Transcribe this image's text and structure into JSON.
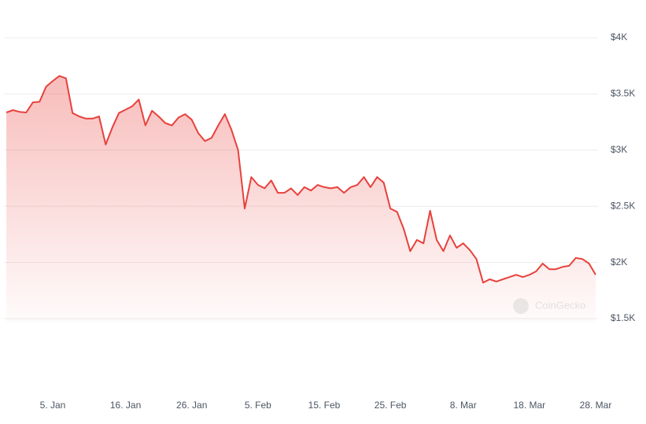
{
  "chart_data": {
    "type": "line",
    "watermark": "CoinGecko",
    "categories": [
      "29. Dec",
      "30. Dec",
      "31. Dec",
      "1. Jan",
      "2. Jan",
      "3. Jan",
      "4. Jan",
      "5. Jan",
      "6. Jan",
      "7. Jan",
      "8. Jan",
      "9. Jan",
      "10. Jan",
      "11. Jan",
      "12. Jan",
      "13. Jan",
      "14. Jan",
      "15. Jan",
      "16. Jan",
      "17. Jan",
      "18. Jan",
      "19. Jan",
      "20. Jan",
      "21. Jan",
      "22. Jan",
      "23. Jan",
      "24. Jan",
      "25. Jan",
      "26. Jan",
      "27. Jan",
      "28. Jan",
      "29. Jan",
      "30. Jan",
      "31. Jan",
      "1. Feb",
      "2. Feb",
      "3. Feb",
      "4. Feb",
      "5. Feb",
      "6. Feb",
      "7. Feb",
      "8. Feb",
      "9. Feb",
      "10. Feb",
      "11. Feb",
      "12. Feb",
      "13. Feb",
      "14. Feb",
      "15. Feb",
      "16. Feb",
      "17. Feb",
      "18. Feb",
      "19. Feb",
      "20. Feb",
      "21. Feb",
      "22. Feb",
      "23. Feb",
      "24. Feb",
      "25. Feb",
      "26. Feb",
      "27. Feb",
      "28. Feb",
      "1. Mar",
      "2. Mar",
      "3. Mar",
      "4. Mar",
      "5. Mar",
      "6. Mar",
      "7. Mar",
      "8. Mar",
      "9. Mar",
      "10. Mar",
      "11. Mar",
      "12. Mar",
      "13. Mar",
      "14. Mar",
      "15. Mar",
      "16. Mar",
      "17. Mar",
      "18. Mar",
      "19. Mar",
      "20. Mar",
      "21. Mar",
      "22. Mar",
      "23. Mar",
      "24. Mar",
      "25. Mar",
      "26. Mar",
      "27. Mar",
      "28. Mar"
    ],
    "series": [
      {
        "color": "#e8413c",
        "values": [
          3335,
          3356,
          3340,
          3335,
          3425,
          3430,
          3565,
          3615,
          3660,
          3640,
          3330,
          3300,
          3280,
          3280,
          3300,
          3050,
          3200,
          3330,
          3360,
          3390,
          3450,
          3220,
          3350,
          3300,
          3240,
          3220,
          3290,
          3320,
          3270,
          3150,
          3080,
          3110,
          3220,
          3320,
          3180,
          3000,
          2480,
          2760,
          2690,
          2660,
          2730,
          2620,
          2620,
          2660,
          2600,
          2670,
          2640,
          2690,
          2670,
          2660,
          2670,
          2620,
          2670,
          2690,
          2760,
          2670,
          2760,
          2710,
          2480,
          2450,
          2300,
          2100,
          2200,
          2170,
          2460,
          2200,
          2100,
          2240,
          2130,
          2170,
          2110,
          2030,
          1820,
          1850,
          1830,
          1850,
          1870,
          1890,
          1870,
          1890,
          1920,
          1990,
          1940,
          1940,
          1960,
          1970,
          2040,
          2030,
          1990,
          1890
        ]
      }
    ],
    "xticks": [
      "5. Jan",
      "16. Jan",
      "26. Jan",
      "5. Feb",
      "15. Feb",
      "25. Feb",
      "8. Mar",
      "18. Mar",
      "28. Mar"
    ],
    "ylim": [
      1500,
      4000
    ],
    "yticks": [
      {
        "value": 1500,
        "label": "$1.5K"
      },
      {
        "value": 2000,
        "label": "$2K"
      },
      {
        "value": 2500,
        "label": "$2.5K"
      },
      {
        "value": 3000,
        "label": "$3K"
      },
      {
        "value": 3500,
        "label": "$3.5K"
      },
      {
        "value": 4000,
        "label": "$4K"
      }
    ],
    "grid": true
  }
}
